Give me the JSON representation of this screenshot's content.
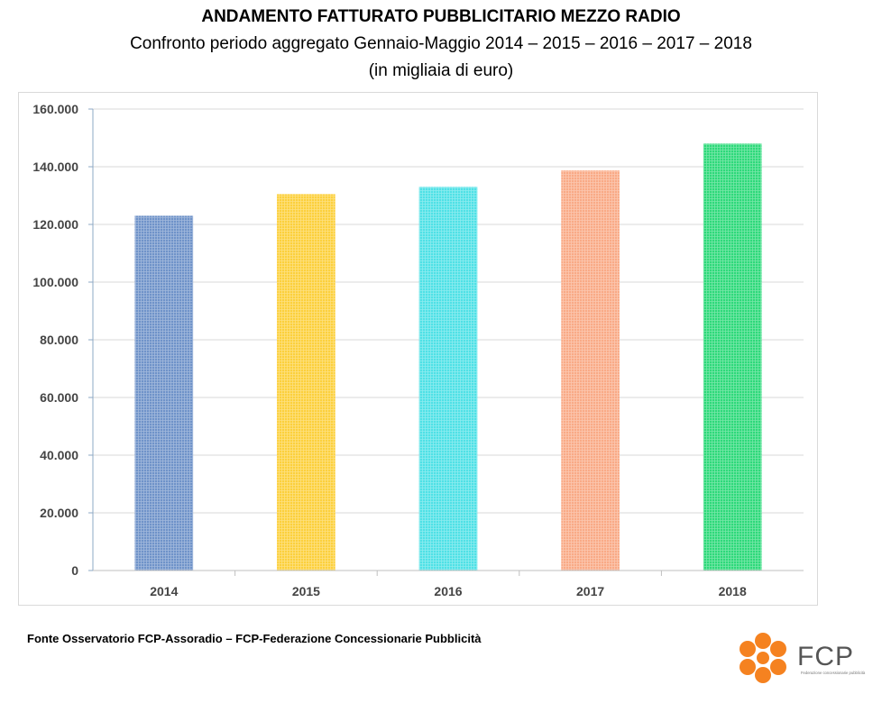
{
  "header": {
    "title": "ANDAMENTO FATTURATO PUBBLICITARIO MEZZO RADIO",
    "subtitle": "Confronto periodo aggregato Gennaio-Maggio 2014 – 2015 – 2016 – 2017 – 2018",
    "unit": "(in migliaia di euro)"
  },
  "footer": {
    "source": "Fonte Osservatorio FCP-Assoradio – FCP-Federazione Concessionarie Pubblicità"
  },
  "logo": {
    "text": "FCP",
    "tagline": "Federazione concessionarie pubblicità",
    "color": "#f58220"
  },
  "chart_data": {
    "type": "bar",
    "categories": [
      "2014",
      "2015",
      "2016",
      "2017",
      "2018"
    ],
    "values": [
      123000,
      130500,
      133000,
      138700,
      148000
    ],
    "colors": [
      "#6f93c9",
      "#fcd03c",
      "#4fe1e6",
      "#f9aa86",
      "#2ed97a"
    ],
    "title": "",
    "xlabel": "",
    "ylabel": "",
    "ylim": [
      0,
      160000
    ],
    "yticks": [
      0,
      20000,
      40000,
      60000,
      80000,
      100000,
      120000,
      140000,
      160000
    ],
    "ytick_labels": [
      "0",
      "20.000",
      "40.000",
      "60.000",
      "80.000",
      "100.000",
      "120.000",
      "140.000",
      "160.000"
    ],
    "grid": true,
    "legend": "none"
  }
}
